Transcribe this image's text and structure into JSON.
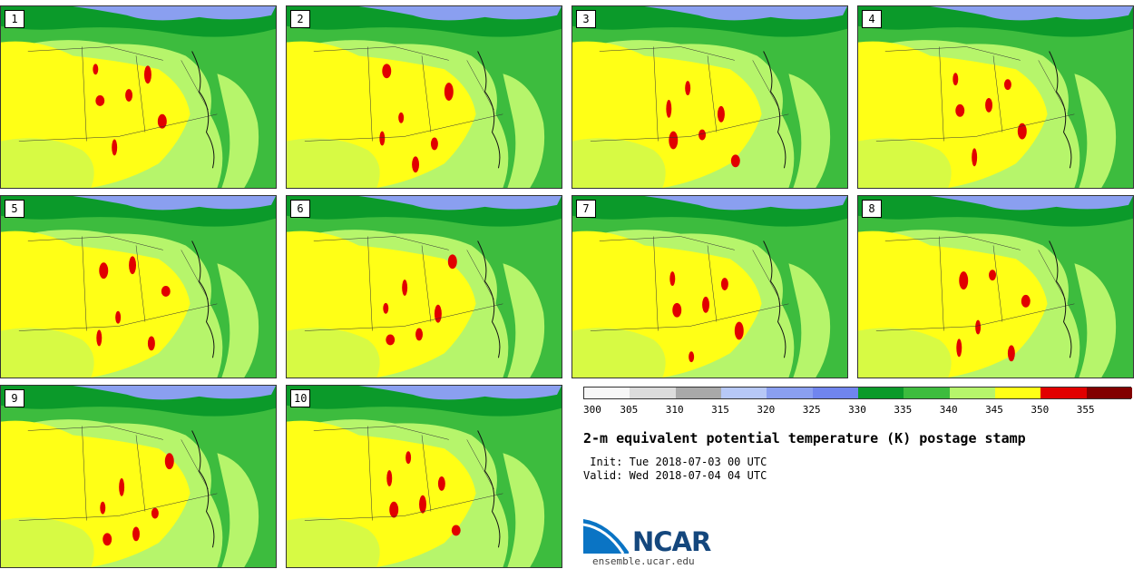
{
  "panels": [
    {
      "label": "1"
    },
    {
      "label": "2"
    },
    {
      "label": "3"
    },
    {
      "label": "4"
    },
    {
      "label": "5"
    },
    {
      "label": "6"
    },
    {
      "label": "7"
    },
    {
      "label": "8"
    },
    {
      "label": "9"
    },
    {
      "label": "10"
    }
  ],
  "colorbar": {
    "ticks": [
      "300",
      "305",
      "310",
      "315",
      "320",
      "325",
      "330",
      "335",
      "340",
      "345",
      "350",
      "355"
    ],
    "colors": [
      "#f7f7f7",
      "#dcdcdc",
      "#a9a9a9",
      "#b7c8f6",
      "#8a9ff0",
      "#7085ee",
      "#0b9a2a",
      "#3dbc3e",
      "#b6f56b",
      "#ffff16",
      "#e10000",
      "#820000"
    ]
  },
  "title": "2-m equivalent potential temperature (K) postage stamp",
  "init_text": " Init: Tue 2018-07-03 00 UTC",
  "valid_text": "Valid: Wed 2018-07-04 04 UTC",
  "logo": {
    "text": "NCAR",
    "url": "ensemble.ucar.edu"
  }
}
